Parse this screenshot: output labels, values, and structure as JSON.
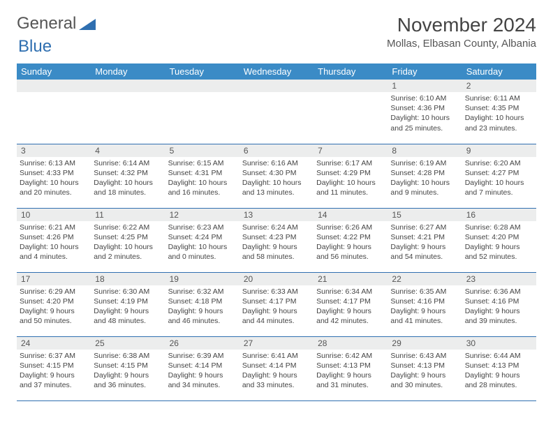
{
  "logo": {
    "text1": "General",
    "text2": "Blue"
  },
  "header": {
    "title": "November 2024",
    "location": "Mollas, Elbasan County, Albania"
  },
  "colors": {
    "header_bg": "#3b8bc6",
    "header_fg": "#ffffff",
    "daynum_bg": "#eceded",
    "border": "#2f6fb0",
    "logo_accent": "#2f6fb0"
  },
  "week_header": [
    "Sunday",
    "Monday",
    "Tuesday",
    "Wednesday",
    "Thursday",
    "Friday",
    "Saturday"
  ],
  "weeks": [
    [
      {
        "n": "",
        "sr": "",
        "ss": "",
        "dl": ""
      },
      {
        "n": "",
        "sr": "",
        "ss": "",
        "dl": ""
      },
      {
        "n": "",
        "sr": "",
        "ss": "",
        "dl": ""
      },
      {
        "n": "",
        "sr": "",
        "ss": "",
        "dl": ""
      },
      {
        "n": "",
        "sr": "",
        "ss": "",
        "dl": ""
      },
      {
        "n": "1",
        "sr": "Sunrise: 6:10 AM",
        "ss": "Sunset: 4:36 PM",
        "dl": "Daylight: 10 hours and 25 minutes."
      },
      {
        "n": "2",
        "sr": "Sunrise: 6:11 AM",
        "ss": "Sunset: 4:35 PM",
        "dl": "Daylight: 10 hours and 23 minutes."
      }
    ],
    [
      {
        "n": "3",
        "sr": "Sunrise: 6:13 AM",
        "ss": "Sunset: 4:33 PM",
        "dl": "Daylight: 10 hours and 20 minutes."
      },
      {
        "n": "4",
        "sr": "Sunrise: 6:14 AM",
        "ss": "Sunset: 4:32 PM",
        "dl": "Daylight: 10 hours and 18 minutes."
      },
      {
        "n": "5",
        "sr": "Sunrise: 6:15 AM",
        "ss": "Sunset: 4:31 PM",
        "dl": "Daylight: 10 hours and 16 minutes."
      },
      {
        "n": "6",
        "sr": "Sunrise: 6:16 AM",
        "ss": "Sunset: 4:30 PM",
        "dl": "Daylight: 10 hours and 13 minutes."
      },
      {
        "n": "7",
        "sr": "Sunrise: 6:17 AM",
        "ss": "Sunset: 4:29 PM",
        "dl": "Daylight: 10 hours and 11 minutes."
      },
      {
        "n": "8",
        "sr": "Sunrise: 6:19 AM",
        "ss": "Sunset: 4:28 PM",
        "dl": "Daylight: 10 hours and 9 minutes."
      },
      {
        "n": "9",
        "sr": "Sunrise: 6:20 AM",
        "ss": "Sunset: 4:27 PM",
        "dl": "Daylight: 10 hours and 7 minutes."
      }
    ],
    [
      {
        "n": "10",
        "sr": "Sunrise: 6:21 AM",
        "ss": "Sunset: 4:26 PM",
        "dl": "Daylight: 10 hours and 4 minutes."
      },
      {
        "n": "11",
        "sr": "Sunrise: 6:22 AM",
        "ss": "Sunset: 4:25 PM",
        "dl": "Daylight: 10 hours and 2 minutes."
      },
      {
        "n": "12",
        "sr": "Sunrise: 6:23 AM",
        "ss": "Sunset: 4:24 PM",
        "dl": "Daylight: 10 hours and 0 minutes."
      },
      {
        "n": "13",
        "sr": "Sunrise: 6:24 AM",
        "ss": "Sunset: 4:23 PM",
        "dl": "Daylight: 9 hours and 58 minutes."
      },
      {
        "n": "14",
        "sr": "Sunrise: 6:26 AM",
        "ss": "Sunset: 4:22 PM",
        "dl": "Daylight: 9 hours and 56 minutes."
      },
      {
        "n": "15",
        "sr": "Sunrise: 6:27 AM",
        "ss": "Sunset: 4:21 PM",
        "dl": "Daylight: 9 hours and 54 minutes."
      },
      {
        "n": "16",
        "sr": "Sunrise: 6:28 AM",
        "ss": "Sunset: 4:20 PM",
        "dl": "Daylight: 9 hours and 52 minutes."
      }
    ],
    [
      {
        "n": "17",
        "sr": "Sunrise: 6:29 AM",
        "ss": "Sunset: 4:20 PM",
        "dl": "Daylight: 9 hours and 50 minutes."
      },
      {
        "n": "18",
        "sr": "Sunrise: 6:30 AM",
        "ss": "Sunset: 4:19 PM",
        "dl": "Daylight: 9 hours and 48 minutes."
      },
      {
        "n": "19",
        "sr": "Sunrise: 6:32 AM",
        "ss": "Sunset: 4:18 PM",
        "dl": "Daylight: 9 hours and 46 minutes."
      },
      {
        "n": "20",
        "sr": "Sunrise: 6:33 AM",
        "ss": "Sunset: 4:17 PM",
        "dl": "Daylight: 9 hours and 44 minutes."
      },
      {
        "n": "21",
        "sr": "Sunrise: 6:34 AM",
        "ss": "Sunset: 4:17 PM",
        "dl": "Daylight: 9 hours and 42 minutes."
      },
      {
        "n": "22",
        "sr": "Sunrise: 6:35 AM",
        "ss": "Sunset: 4:16 PM",
        "dl": "Daylight: 9 hours and 41 minutes."
      },
      {
        "n": "23",
        "sr": "Sunrise: 6:36 AM",
        "ss": "Sunset: 4:16 PM",
        "dl": "Daylight: 9 hours and 39 minutes."
      }
    ],
    [
      {
        "n": "24",
        "sr": "Sunrise: 6:37 AM",
        "ss": "Sunset: 4:15 PM",
        "dl": "Daylight: 9 hours and 37 minutes."
      },
      {
        "n": "25",
        "sr": "Sunrise: 6:38 AM",
        "ss": "Sunset: 4:15 PM",
        "dl": "Daylight: 9 hours and 36 minutes."
      },
      {
        "n": "26",
        "sr": "Sunrise: 6:39 AM",
        "ss": "Sunset: 4:14 PM",
        "dl": "Daylight: 9 hours and 34 minutes."
      },
      {
        "n": "27",
        "sr": "Sunrise: 6:41 AM",
        "ss": "Sunset: 4:14 PM",
        "dl": "Daylight: 9 hours and 33 minutes."
      },
      {
        "n": "28",
        "sr": "Sunrise: 6:42 AM",
        "ss": "Sunset: 4:13 PM",
        "dl": "Daylight: 9 hours and 31 minutes."
      },
      {
        "n": "29",
        "sr": "Sunrise: 6:43 AM",
        "ss": "Sunset: 4:13 PM",
        "dl": "Daylight: 9 hours and 30 minutes."
      },
      {
        "n": "30",
        "sr": "Sunrise: 6:44 AM",
        "ss": "Sunset: 4:13 PM",
        "dl": "Daylight: 9 hours and 28 minutes."
      }
    ]
  ]
}
